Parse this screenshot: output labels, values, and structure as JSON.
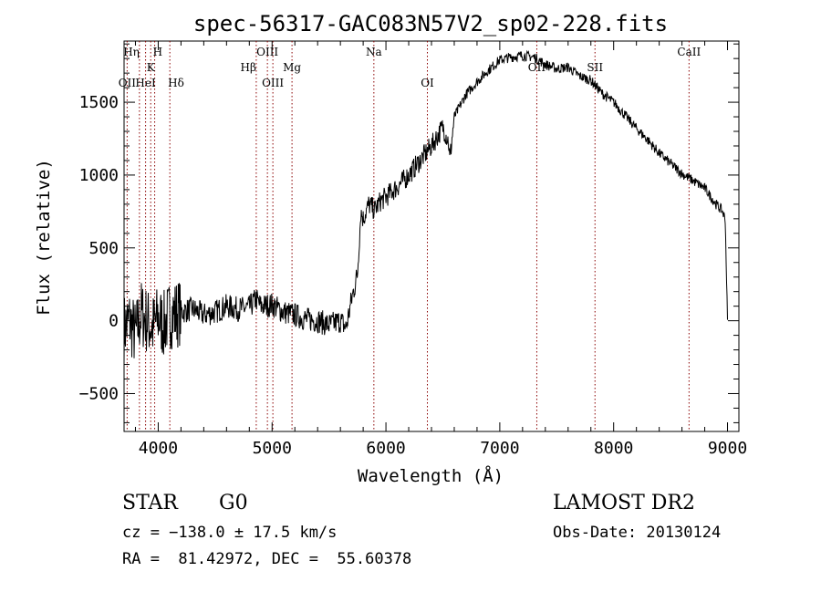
{
  "chart_data": {
    "type": "line",
    "title": "spec-56317-GAC083N57V2_sp02-228.fits",
    "xlabel": "Wavelength (Å)",
    "ylabel": "Flux (relative)",
    "xlim": [
      3700,
      9100
    ],
    "ylim": [
      -760,
      1920
    ],
    "xticks": [
      4000,
      5000,
      6000,
      7000,
      8000,
      9000
    ],
    "xtick_labels": [
      "4000",
      "5000",
      "6000",
      "7000",
      "8000",
      "9000"
    ],
    "yticks": [
      -500,
      0,
      500,
      1000,
      1500
    ],
    "ytick_labels": [
      "−500",
      "0",
      "500",
      "1000",
      "1500"
    ],
    "grid": false,
    "line_color": "#000000",
    "marker_color": "#8b0000",
    "series": [
      {
        "x": [
          3700,
          3750,
          3800,
          3850,
          3900,
          3950,
          4000,
          4050,
          4100,
          4200,
          4300,
          4400,
          4500,
          4600,
          4700,
          4800,
          4860,
          4900,
          5000,
          5100,
          5200,
          5300,
          5400,
          5500,
          5600,
          5650,
          5700,
          5750,
          5780,
          5800,
          5850,
          5900,
          5950,
          6000,
          6100,
          6200,
          6300,
          6400,
          6500,
          6550,
          6560,
          6600,
          6700,
          6800,
          6900,
          7000,
          7100,
          7200,
          7300,
          7400,
          7500,
          7600,
          7700,
          7800,
          7900,
          8000,
          8100,
          8200,
          8300,
          8400,
          8500,
          8600,
          8700,
          8800,
          8900,
          8950,
          8980,
          9000
        ],
        "y": [
          -50,
          0,
          -100,
          50,
          0,
          -50,
          20,
          -30,
          40,
          60,
          80,
          40,
          60,
          100,
          80,
          90,
          150,
          100,
          110,
          60,
          40,
          10,
          0,
          -30,
          0,
          -50,
          150,
          320,
          750,
          700,
          800,
          760,
          820,
          850,
          920,
          1000,
          1100,
          1200,
          1330,
          1230,
          1100,
          1400,
          1550,
          1640,
          1720,
          1790,
          1810,
          1820,
          1810,
          1760,
          1730,
          1740,
          1680,
          1650,
          1560,
          1500,
          1410,
          1320,
          1240,
          1150,
          1080,
          1010,
          960,
          910,
          800,
          760,
          700,
          0
        ]
      }
    ],
    "lines": [
      {
        "label": "OII",
        "wave": 3727
      },
      {
        "label": "Hη",
        "wave": 3835
      },
      {
        "label": "HeI",
        "wave": 3889
      },
      {
        "label": "K",
        "wave": 3934
      },
      {
        "label": "H",
        "wave": 3969
      },
      {
        "label": "Hδ",
        "wave": 4102
      },
      {
        "label": "Hβ",
        "wave": 4861
      },
      {
        "label": "OIII",
        "wave": 4959
      },
      {
        "label": "OIII",
        "wave": 5007
      },
      {
        "label": "Mg",
        "wave": 5175
      },
      {
        "label": "Na",
        "wave": 5894
      },
      {
        "label": "OI",
        "wave": 6364
      },
      {
        "label": "OII",
        "wave": 7325
      },
      {
        "label": "SII",
        "wave": 7836
      },
      {
        "label": "CaII",
        "wave": 8662
      }
    ]
  },
  "info": {
    "object_class": "STAR",
    "subclass": "G0",
    "survey": "LAMOST DR2",
    "cz": "cz = −138.0 ± 17.5 km/s",
    "obs_date": "Obs-Date: 20130124",
    "coords": "RA =  81.42972, DEC =  55.60378"
  }
}
